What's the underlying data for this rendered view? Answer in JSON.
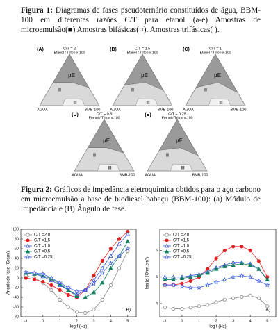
{
  "figure1": {
    "label": "Figura 1:",
    "caption": "Diagramas de fases pseudoternário constituídos de água, BBM-100 em diferentes razões C/T para etanol (a-e) Amostras de microemulsão(■) Amostras bifásicas(○). Amostras trifásicas( ).",
    "panels": [
      {
        "letter": "(A)",
        "ratio": "C/T = 2",
        "apex": "Etanol / Triton x-100",
        "phases": [
          "µE",
          "II",
          "III"
        ],
        "left": "AGUA",
        "right": "BMB-100"
      },
      {
        "letter": "(B)",
        "ratio": "C/T = 1.5",
        "apex": "Etanol / Triton x-100",
        "phases": [
          "µE",
          "II",
          "III"
        ],
        "left": "AGUA",
        "right": "BMB-100"
      },
      {
        "letter": "(C)",
        "ratio": "C/T = 1",
        "apex": "Etanol / Triton x-100",
        "phases": [
          "µE",
          "II",
          "III"
        ],
        "left": "AGUA",
        "right": "BMB-100"
      },
      {
        "letter": "(D)",
        "ratio": "C/T = 0.5",
        "apex": "Etanol / Triton x-100",
        "phases": [
          "µE",
          "II",
          "III"
        ],
        "left": "AGUA",
        "right": "BMB-100"
      },
      {
        "letter": "(E)",
        "ratio": "C/T = 0.25",
        "apex": "Etanol / Triton x-100",
        "phases": [
          "µE",
          "II",
          "III"
        ],
        "left": "AGUA",
        "right": "BMB-100"
      }
    ]
  },
  "figure2": {
    "label": "Figura 2:",
    "caption": "Gráficos de impedância eletroquímica obtidos para o aço carbono em microemulsão a base de biodiesel babaçu (BBM-100): (a) Módulo de impedância e (B) Ângulo de fase."
  },
  "chart_data": [
    {
      "type": "line",
      "panel_label": "B)",
      "x_label": "log f (Hz)",
      "y_label": "Ângulo de fase (Graus)",
      "x": [
        -1,
        -0.5,
        0,
        0.5,
        1,
        1.5,
        2,
        2.5,
        3,
        3.5,
        4,
        4.5,
        5
      ],
      "xlim": [
        -1.3,
        5.5
      ],
      "xticks": [
        -1,
        0,
        1,
        2,
        3,
        4,
        5
      ],
      "ylim": [
        -80,
        100
      ],
      "yticks": [
        -80,
        -60,
        -40,
        -20,
        0,
        20,
        40,
        60,
        80,
        100
      ],
      "legend": "upper left",
      "series": [
        {
          "name": "C/T =2,0",
          "color": "#888888",
          "marker": "circle-open",
          "values": [
            5,
            0,
            -10,
            -25,
            -45,
            -60,
            -70,
            -72,
            -65,
            -45,
            -15,
            20,
            55
          ]
        },
        {
          "name": "C/T =1,5",
          "color": "#e02020",
          "marker": "circle-filled",
          "values": [
            0,
            -3,
            -8,
            -15,
            -25,
            -35,
            -40,
            -25,
            5,
            35,
            60,
            80,
            95
          ]
        },
        {
          "name": "C/T =1,0",
          "color": "#3050d0",
          "marker": "triangle-open",
          "values": [
            10,
            8,
            3,
            -5,
            -15,
            -25,
            -35,
            -25,
            -5,
            20,
            45,
            70,
            90
          ]
        },
        {
          "name": "C/T =0,5",
          "color": "#108060",
          "marker": "triangle-filled",
          "values": [
            10,
            8,
            5,
            -2,
            -12,
            -25,
            -38,
            -40,
            -30,
            -10,
            20,
            45,
            75
          ]
        },
        {
          "name": "C/T =0,25",
          "color": "#4060e0",
          "marker": "star-open",
          "values": [
            12,
            10,
            8,
            0,
            -10,
            -20,
            -28,
            -25,
            -12,
            10,
            30,
            45,
            60
          ]
        }
      ]
    },
    {
      "type": "line",
      "panel_label": "A)",
      "x_label": "log f (Hz)",
      "y_label": "log |z| (Ohm.cm²)",
      "x": [
        -1,
        -0.5,
        0,
        0.5,
        1,
        1.5,
        2,
        2.5,
        3,
        3.5,
        4,
        4.5,
        5
      ],
      "xlim": [
        -1.3,
        5.5
      ],
      "xticks": [
        -1,
        0,
        1,
        2,
        3,
        4,
        5
      ],
      "ylim": [
        3.5,
        6.8
      ],
      "yticks": [
        4,
        5,
        6
      ],
      "legend": "upper left",
      "series": [
        {
          "name": "C/T =2,0",
          "color": "#888888",
          "marker": "circle-open",
          "values": [
            3.85,
            3.8,
            3.8,
            3.85,
            3.9,
            3.95,
            4.05,
            4.15,
            4.2,
            4.25,
            4.3,
            4.2,
            3.9
          ]
        },
        {
          "name": "C/T =1,5",
          "color": "#e02020",
          "marker": "circle-filled",
          "values": [
            4.7,
            4.7,
            4.75,
            4.85,
            5.0,
            5.3,
            5.7,
            6.0,
            6.15,
            6.15,
            6.0,
            5.6,
            5.0
          ]
        },
        {
          "name": "C/T =1,0",
          "color": "#3050d0",
          "marker": "triangle-open",
          "values": [
            5.0,
            5.0,
            5.0,
            5.05,
            5.1,
            5.2,
            5.35,
            5.45,
            5.55,
            5.55,
            5.5,
            5.3,
            4.9
          ]
        },
        {
          "name": "C/T =0,5",
          "color": "#108060",
          "marker": "triangle-filled",
          "values": [
            4.9,
            4.9,
            4.95,
            5.0,
            5.05,
            5.15,
            5.3,
            5.4,
            5.45,
            5.5,
            5.45,
            5.3,
            4.9
          ]
        },
        {
          "name": "C/T =0,25",
          "color": "#4060e0",
          "marker": "star-open",
          "values": [
            4.7,
            4.7,
            4.65,
            4.6,
            4.6,
            4.7,
            4.8,
            4.9,
            5.0,
            5.05,
            5.0,
            4.85,
            4.7
          ]
        }
      ]
    }
  ]
}
